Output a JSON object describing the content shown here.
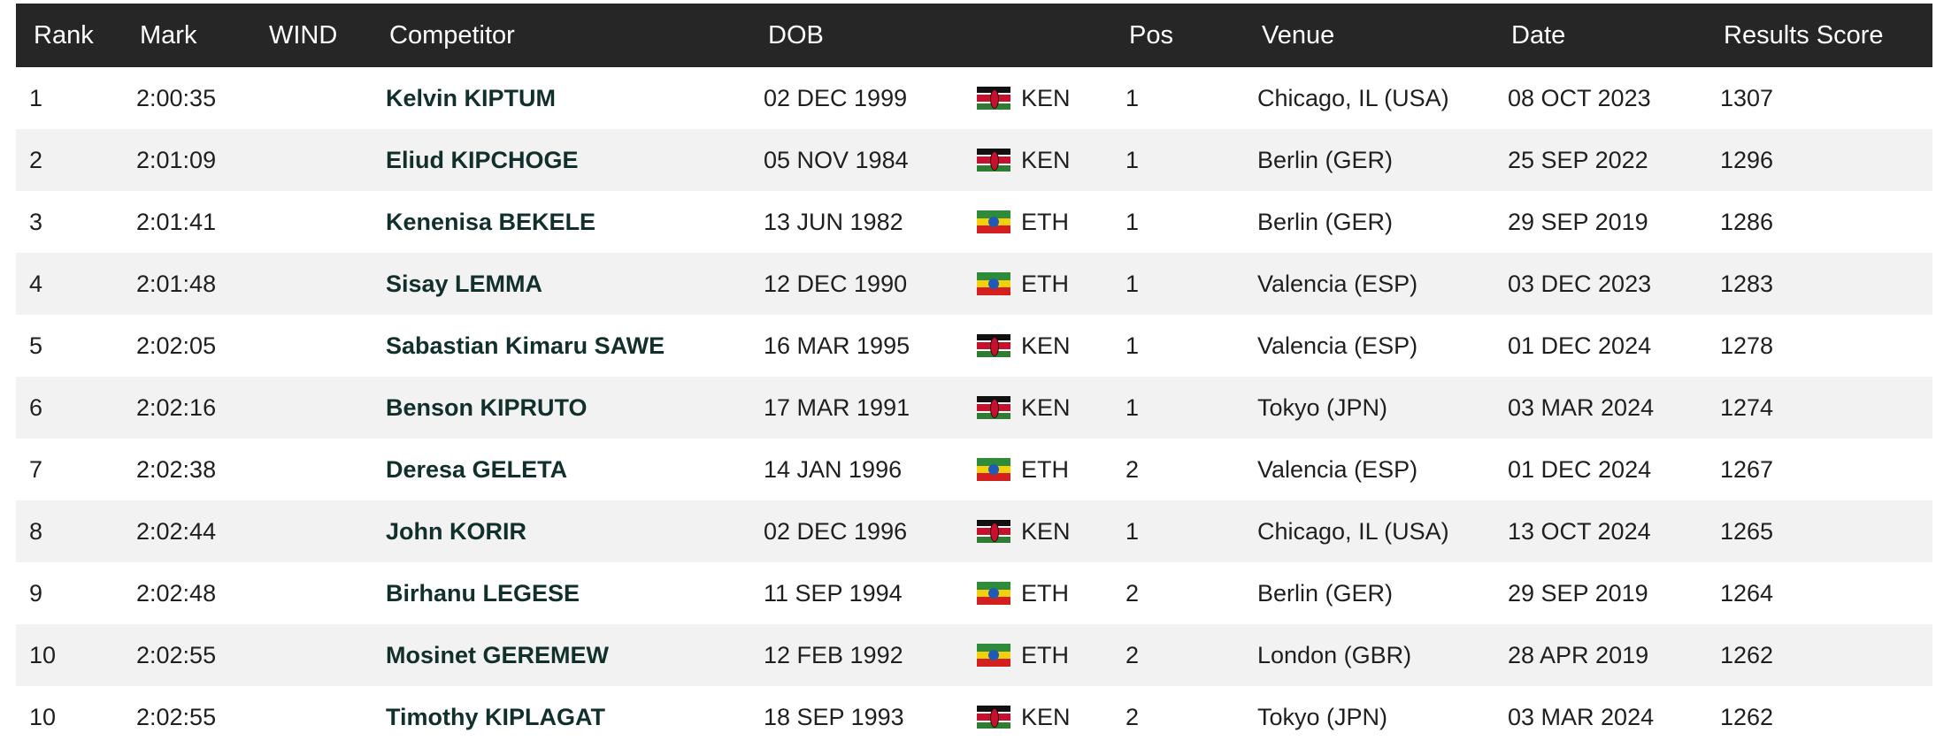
{
  "columns": {
    "rank": "Rank",
    "mark": "Mark",
    "wind": "WIND",
    "competitor": "Competitor",
    "dob": "DOB",
    "pos": "Pos",
    "venue": "Venue",
    "date": "Date",
    "score": "Results Score"
  },
  "rows": [
    {
      "rank": "1",
      "mark": "2:00:35",
      "competitor": "Kelvin KIPTUM",
      "dob": "02 DEC 1999",
      "nat": "KEN",
      "flag": "kenya-flag-icon",
      "pos": "1",
      "venue": "Chicago, IL (USA)",
      "date": "08 OCT 2023",
      "score": "1307"
    },
    {
      "rank": "2",
      "mark": "2:01:09",
      "competitor": "Eliud KIPCHOGE",
      "dob": "05 NOV 1984",
      "nat": "KEN",
      "flag": "kenya-flag-icon",
      "pos": "1",
      "venue": "Berlin (GER)",
      "date": "25 SEP 2022",
      "score": "1296"
    },
    {
      "rank": "3",
      "mark": "2:01:41",
      "competitor": "Kenenisa BEKELE",
      "dob": "13 JUN 1982",
      "nat": "ETH",
      "flag": "ethiopia-flag-icon",
      "pos": "1",
      "venue": "Berlin (GER)",
      "date": "29 SEP 2019",
      "score": "1286"
    },
    {
      "rank": "4",
      "mark": "2:01:48",
      "competitor": "Sisay LEMMA",
      "dob": "12 DEC 1990",
      "nat": "ETH",
      "flag": "ethiopia-flag-icon",
      "pos": "1",
      "venue": "Valencia (ESP)",
      "date": "03 DEC 2023",
      "score": "1283"
    },
    {
      "rank": "5",
      "mark": "2:02:05",
      "competitor": "Sabastian Kimaru SAWE",
      "dob": "16 MAR 1995",
      "nat": "KEN",
      "flag": "kenya-flag-icon",
      "pos": "1",
      "venue": "Valencia (ESP)",
      "date": "01 DEC 2024",
      "score": "1278"
    },
    {
      "rank": "6",
      "mark": "2:02:16",
      "competitor": "Benson KIPRUTO",
      "dob": "17 MAR 1991",
      "nat": "KEN",
      "flag": "kenya-flag-icon",
      "pos": "1",
      "venue": "Tokyo (JPN)",
      "date": "03 MAR 2024",
      "score": "1274"
    },
    {
      "rank": "7",
      "mark": "2:02:38",
      "competitor": "Deresa GELETA",
      "dob": "14 JAN 1996",
      "nat": "ETH",
      "flag": "ethiopia-flag-icon",
      "pos": "2",
      "venue": "Valencia (ESP)",
      "date": "01 DEC 2024",
      "score": "1267"
    },
    {
      "rank": "8",
      "mark": "2:02:44",
      "competitor": "John KORIR",
      "dob": "02 DEC 1996",
      "nat": "KEN",
      "flag": "kenya-flag-icon",
      "pos": "1",
      "venue": "Chicago, IL (USA)",
      "date": "13 OCT 2024",
      "score": "1265"
    },
    {
      "rank": "9",
      "mark": "2:02:48",
      "competitor": "Birhanu LEGESE",
      "dob": "11 SEP 1994",
      "nat": "ETH",
      "flag": "ethiopia-flag-icon",
      "pos": "2",
      "venue": "Berlin (GER)",
      "date": "29 SEP 2019",
      "score": "1264"
    },
    {
      "rank": "10",
      "mark": "2:02:55",
      "competitor": "Mosinet GEREMEW",
      "dob": "12 FEB 1992",
      "nat": "ETH",
      "flag": "ethiopia-flag-icon",
      "pos": "2",
      "venue": "London (GBR)",
      "date": "28 APR 2019",
      "score": "1262"
    },
    {
      "rank": "10",
      "mark": "2:02:55",
      "competitor": "Timothy KIPLAGAT",
      "dob": "18 SEP 1993",
      "nat": "KEN",
      "flag": "kenya-flag-icon",
      "pos": "2",
      "venue": "Tokyo (JPN)",
      "date": "03 MAR 2024",
      "score": "1262"
    }
  ]
}
